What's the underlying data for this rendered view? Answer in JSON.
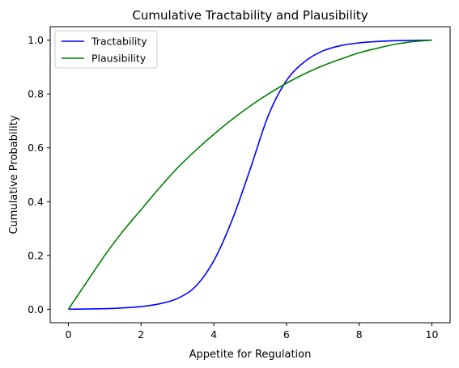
{
  "chart_data": {
    "type": "line",
    "title": "Cumulative Tractability and Plausibility",
    "xlabel": "Appetite for Regulation",
    "ylabel": "Cumulative Probability",
    "xlim": [
      -0.5,
      10.5
    ],
    "ylim": [
      -0.05,
      1.05
    ],
    "xticks": [
      0,
      2,
      4,
      6,
      8,
      10
    ],
    "xtick_labels": [
      "0",
      "2",
      "4",
      "6",
      "8",
      "10"
    ],
    "yticks": [
      0.0,
      0.2,
      0.4,
      0.6,
      0.8,
      1.0
    ],
    "ytick_labels": [
      "0.0",
      "0.2",
      "0.4",
      "0.6",
      "0.8",
      "1.0"
    ],
    "grid": false,
    "legend_position": "upper-left",
    "x": [
      0,
      0.5,
      1,
      1.5,
      2,
      2.5,
      3,
      3.5,
      4,
      4.5,
      5,
      5.5,
      6,
      6.5,
      7,
      7.5,
      8,
      8.5,
      9,
      9.5,
      10
    ],
    "series": [
      {
        "name": "Tractability",
        "color": "#0000ff",
        "values": [
          0.0,
          0.001,
          0.002,
          0.005,
          0.01,
          0.02,
          0.04,
          0.085,
          0.18,
          0.33,
          0.52,
          0.72,
          0.85,
          0.92,
          0.96,
          0.98,
          0.99,
          0.995,
          0.998,
          0.999,
          1.0
        ]
      },
      {
        "name": "Plausibility",
        "color": "#008000",
        "values": [
          0.0,
          0.1,
          0.2,
          0.29,
          0.37,
          0.45,
          0.525,
          0.59,
          0.65,
          0.705,
          0.755,
          0.8,
          0.84,
          0.875,
          0.905,
          0.93,
          0.953,
          0.97,
          0.985,
          0.995,
          1.0
        ]
      }
    ]
  }
}
